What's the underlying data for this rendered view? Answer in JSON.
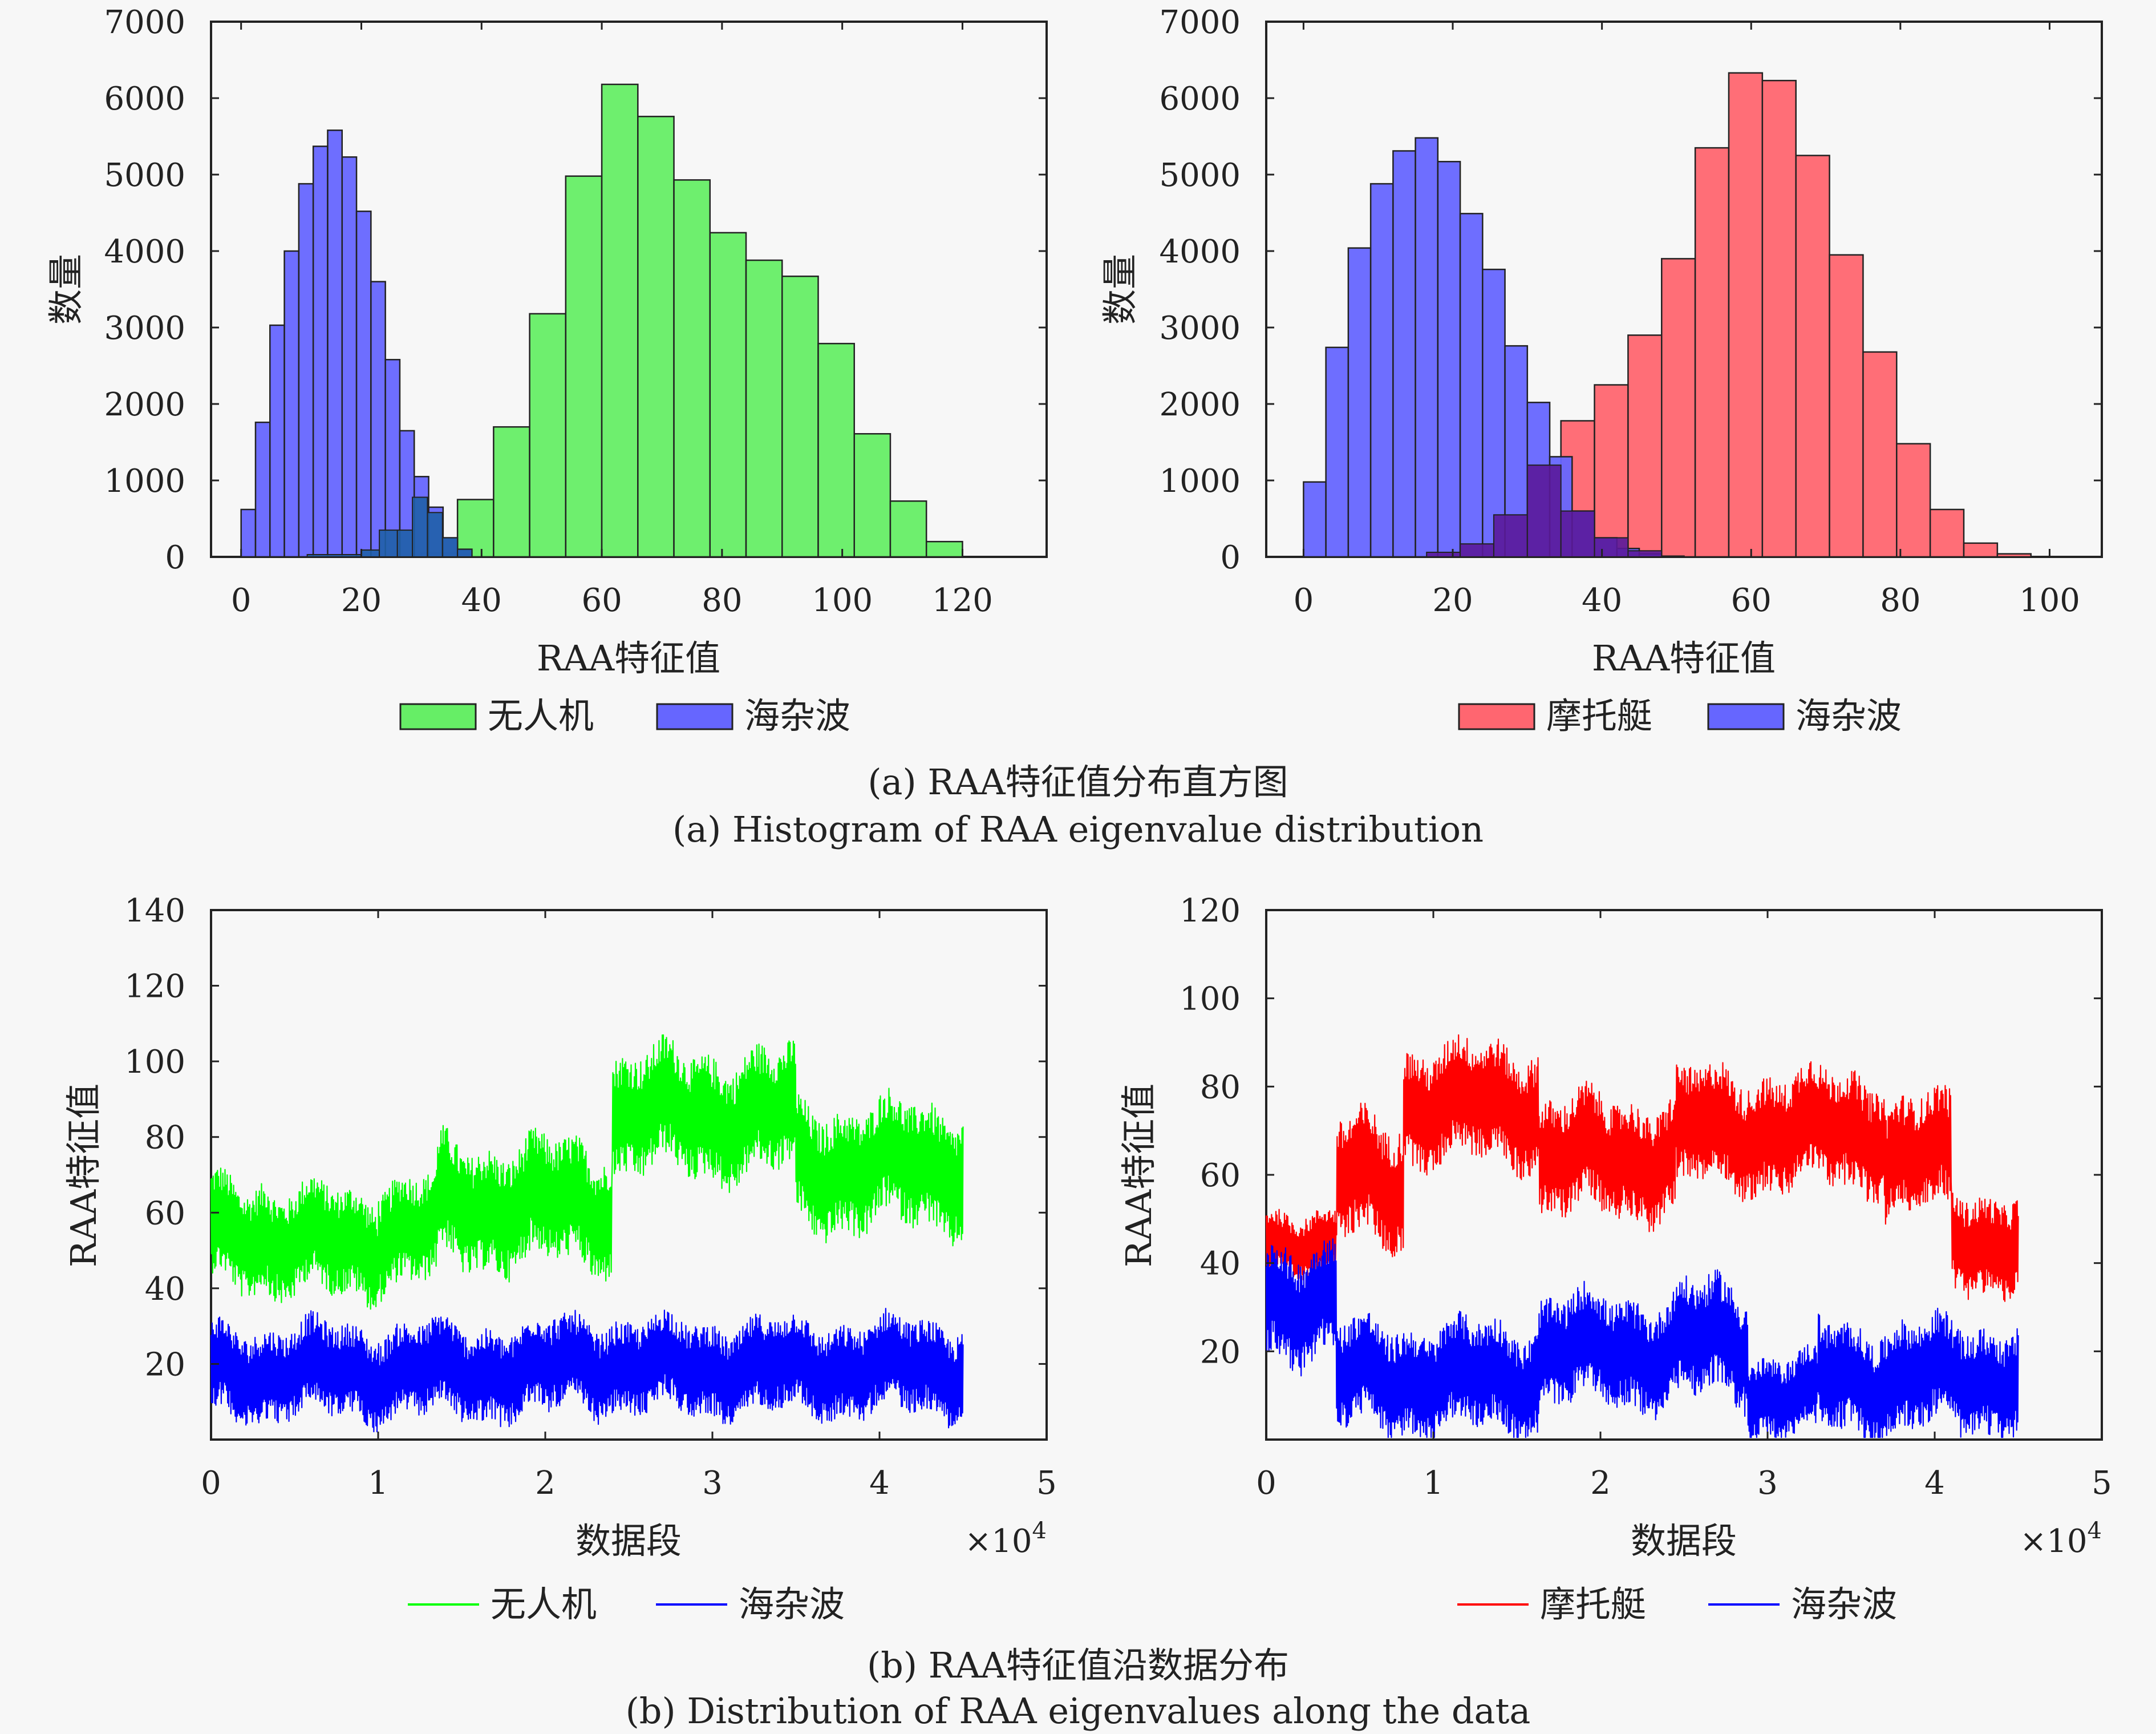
{
  "captions": {
    "a_cn": "(a) RAA特征值分布直方图",
    "a_en": "(a) Histogram of RAA eigenvalue distribution",
    "b_cn": "(b) RAA特征值沿数据分布",
    "b_en": "(b) Distribution of RAA eigenvalues along the data"
  },
  "colors": {
    "green": "#00ff00",
    "blue": "#0000ff",
    "red": "#ff0000",
    "hist_green": "#66ee66",
    "hist_blue": "#6666ff",
    "hist_red": "#ff6670"
  },
  "chart_data": [
    {
      "id": "hist_drone",
      "type": "bar",
      "xlabel": "RAA特征值",
      "ylabel": "数量",
      "xlim": [
        -5,
        134
      ],
      "ylim": [
        0,
        7000
      ],
      "xticks": [
        0,
        20,
        40,
        60,
        80,
        100,
        120
      ],
      "yticks": [
        0,
        1000,
        2000,
        3000,
        4000,
        5000,
        6000,
        7000
      ],
      "legend_position": "bottom",
      "series": [
        {
          "name": "无人机",
          "color": "hist_green",
          "bin_start": 30,
          "bin_width": 6,
          "count": 15,
          "values": [
            50,
            750,
            1700,
            3180,
            4980,
            6180,
            5760,
            4930,
            4240,
            3880,
            3670,
            2790,
            1610,
            730,
            200
          ]
        },
        {
          "name": "海杂波",
          "color": "hist_blue",
          "bin_start": 0,
          "bin_width": 2.4,
          "count": 16,
          "values": [
            620,
            1760,
            3030,
            4000,
            4880,
            5370,
            5580,
            5230,
            4520,
            3600,
            2580,
            1650,
            1050,
            650,
            250,
            100
          ]
        }
      ],
      "overlap_bars": [
        {
          "x0": 11,
          "x1": 20,
          "value": 30
        },
        {
          "x0": 20,
          "x1": 23,
          "value": 90
        },
        {
          "x0": 23,
          "x1": 26,
          "value": 350
        },
        {
          "x0": 26,
          "x1": 28.5,
          "value": 350
        },
        {
          "x0": 28.5,
          "x1": 31,
          "value": 780
        },
        {
          "x0": 31,
          "x1": 33.5,
          "value": 580
        },
        {
          "x0": 33.5,
          "x1": 36,
          "value": 250
        },
        {
          "x0": 36,
          "x1": 38.4,
          "value": 100
        }
      ]
    },
    {
      "id": "hist_boat",
      "type": "bar",
      "xlabel": "RAA特征值",
      "ylabel": "数量",
      "xlim": [
        -5,
        107
      ],
      "ylim": [
        0,
        7000
      ],
      "xticks": [
        0,
        20,
        40,
        60,
        80,
        100
      ],
      "yticks": [
        0,
        1000,
        2000,
        3000,
        4000,
        5000,
        6000,
        7000
      ],
      "legend_position": "bottom",
      "series": [
        {
          "name": "摩托艇",
          "color": "hist_red",
          "bin_start": 16.5,
          "bin_width": 4.5,
          "count": 18,
          "values": [
            60,
            170,
            550,
            1200,
            1780,
            2250,
            2900,
            3900,
            5350,
            6330,
            6230,
            5250,
            3950,
            2680,
            1480,
            620,
            180,
            40
          ]
        },
        {
          "name": "海杂波",
          "color": "hist_blue",
          "bin_start": 0,
          "bin_width": 3,
          "count": 21,
          "values": [
            980,
            2740,
            4040,
            4880,
            5310,
            5480,
            5170,
            4490,
            3760,
            2760,
            2020,
            1310,
            600,
            250,
            110,
            40,
            10,
            0,
            0,
            0,
            0
          ]
        }
      ],
      "overlap_bars": [
        {
          "x0": 16.5,
          "x1": 21,
          "value": 60
        },
        {
          "x0": 21,
          "x1": 25.5,
          "value": 170
        },
        {
          "x0": 25.5,
          "x1": 30,
          "value": 550
        },
        {
          "x0": 30,
          "x1": 34.5,
          "value": 1200
        },
        {
          "x0": 34.5,
          "x1": 39,
          "value": 600
        },
        {
          "x0": 39,
          "x1": 43.5,
          "value": 250
        },
        {
          "x0": 43.5,
          "x1": 48,
          "value": 80
        }
      ]
    },
    {
      "id": "seq_drone",
      "type": "line",
      "xlabel": "数据段",
      "ylabel": "RAA特征值",
      "x_multiplier": "×10^4",
      "xlim": [
        0,
        5
      ],
      "ylim": [
        0,
        140
      ],
      "xticks": [
        0,
        1,
        2,
        3,
        4,
        5
      ],
      "yticks": [
        20,
        40,
        60,
        80,
        100,
        120,
        140
      ],
      "legend_position": "bottom",
      "series": [
        {
          "name": "无人机",
          "color": "green",
          "x_range": [
            0,
            4.5
          ],
          "segments": [
            {
              "x": [
                0,
                0.35
              ],
              "center": 55,
              "amp": 14
            },
            {
              "x": [
                0.35,
                1.0
              ],
              "center": 52,
              "amp": 14
            },
            {
              "x": [
                1.0,
                1.35
              ],
              "center": 55,
              "amp": 14
            },
            {
              "x": [
                1.35,
                2.4
              ],
              "center": 62,
              "amp": 16
            },
            {
              "x": [
                2.4,
                3.5
              ],
              "center": 86,
              "amp": 16
            },
            {
              "x": [
                3.5,
                4.5
              ],
              "center": 72,
              "amp": 16
            }
          ]
        },
        {
          "name": "海杂波",
          "color": "blue",
          "x_range": [
            0,
            4.5
          ],
          "segments": [
            {
              "x": [
                0,
                2.05
              ],
              "center": 18,
              "amp": 12
            },
            {
              "x": [
                2.05,
                2.45
              ],
              "center": 20,
              "amp": 12
            },
            {
              "x": [
                2.45,
                4.5
              ],
              "center": 19,
              "amp": 12
            }
          ]
        }
      ]
    },
    {
      "id": "seq_boat",
      "type": "line",
      "xlabel": "数据段",
      "ylabel": "RAA特征值",
      "x_multiplier": "×10^4",
      "xlim": [
        0,
        5
      ],
      "ylim": [
        0,
        120
      ],
      "xticks": [
        0,
        1,
        2,
        3,
        4,
        5
      ],
      "yticks": [
        20,
        40,
        60,
        80,
        100,
        120
      ],
      "legend_position": "bottom",
      "series": [
        {
          "name": "摩托艇",
          "color": "red",
          "x_range": [
            0,
            4.5
          ],
          "segments": [
            {
              "x": [
                0,
                0.42
              ],
              "center": 45,
              "amp": 7
            },
            {
              "x": [
                0.42,
                0.82
              ],
              "center": 58,
              "amp": 14
            },
            {
              "x": [
                0.82,
                1.63
              ],
              "center": 76,
              "amp": 13
            },
            {
              "x": [
                1.63,
                2.45
              ],
              "center": 64,
              "amp": 13
            },
            {
              "x": [
                2.45,
                3.7
              ],
              "center": 70,
              "amp": 13
            },
            {
              "x": [
                3.7,
                4.1
              ],
              "center": 64,
              "amp": 13
            },
            {
              "x": [
                4.1,
                4.5
              ],
              "center": 45,
              "amp": 11
            }
          ]
        },
        {
          "name": "海杂波",
          "color": "blue",
          "x_range": [
            0,
            4.5
          ],
          "segments": [
            {
              "x": [
                0,
                0.42
              ],
              "center": 32,
              "amp": 13
            },
            {
              "x": [
                0.42,
                1.63
              ],
              "center": 14,
              "amp": 12
            },
            {
              "x": [
                1.63,
                2.45
              ],
              "center": 20,
              "amp": 12
            },
            {
              "x": [
                2.45,
                2.88
              ],
              "center": 22,
              "amp": 13
            },
            {
              "x": [
                2.88,
                3.3
              ],
              "center": 10,
              "amp": 9
            },
            {
              "x": [
                3.3,
                4.5
              ],
              "center": 14,
              "amp": 12
            }
          ]
        }
      ]
    }
  ]
}
